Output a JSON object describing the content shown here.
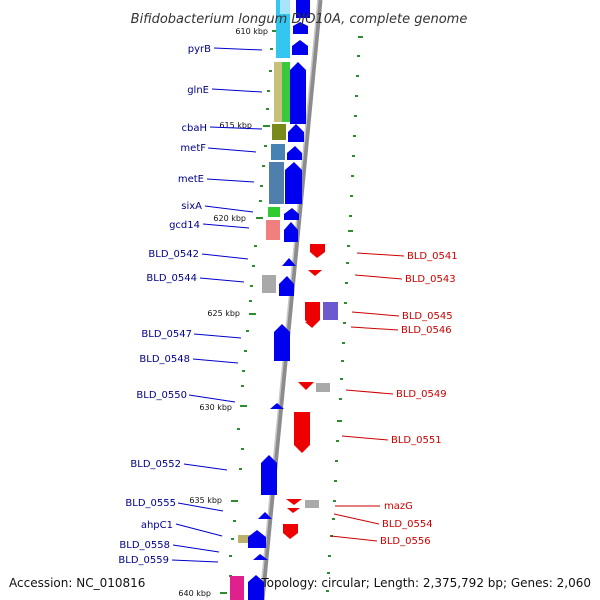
{
  "title": "Bifidobacterium longum DJO10A, complete genome",
  "accession": "Accession: NC_010816",
  "topology": "Topology: circular; Length: 2,375,792 bp; Genes: 2,060",
  "colors": {
    "left_strand_arrow": "#0000ee",
    "right_strand_arrow": "#ee0000",
    "left_label": "#00008b",
    "right_label": "#cc0000",
    "backbone": "#8c8c8c",
    "tick": "#2e8b2e"
  },
  "kbp_ticks": [
    {
      "label": "610 kbp"
    },
    {
      "label": "615 kbp"
    },
    {
      "label": "620 kbp"
    },
    {
      "label": "625 kbp"
    },
    {
      "label": "630 kbp"
    },
    {
      "label": "635 kbp"
    },
    {
      "label": "640 kbp"
    }
  ],
  "left_labels": [
    {
      "label": "pyrB"
    },
    {
      "label": "glnE"
    },
    {
      "label": "cbaH"
    },
    {
      "label": "metF"
    },
    {
      "label": "metE"
    },
    {
      "label": "sixA"
    },
    {
      "label": "gcd14"
    },
    {
      "label": "BLD_0542"
    },
    {
      "label": "BLD_0544"
    },
    {
      "label": "BLD_0547"
    },
    {
      "label": "BLD_0548"
    },
    {
      "label": "BLD_0550"
    },
    {
      "label": "BLD_0552"
    },
    {
      "label": "BLD_0555"
    },
    {
      "label": "ahpC1"
    },
    {
      "label": "BLD_0558"
    },
    {
      "label": "BLD_0559"
    }
  ],
  "right_labels": [
    {
      "label": "BLD_0541"
    },
    {
      "label": "BLD_0543"
    },
    {
      "label": "BLD_0545"
    },
    {
      "label": "BLD_0546"
    },
    {
      "label": "BLD_0549"
    },
    {
      "label": "BLD_0551"
    },
    {
      "label": "mazG"
    },
    {
      "label": "BLD_0554"
    },
    {
      "label": "BLD_0556"
    }
  ]
}
